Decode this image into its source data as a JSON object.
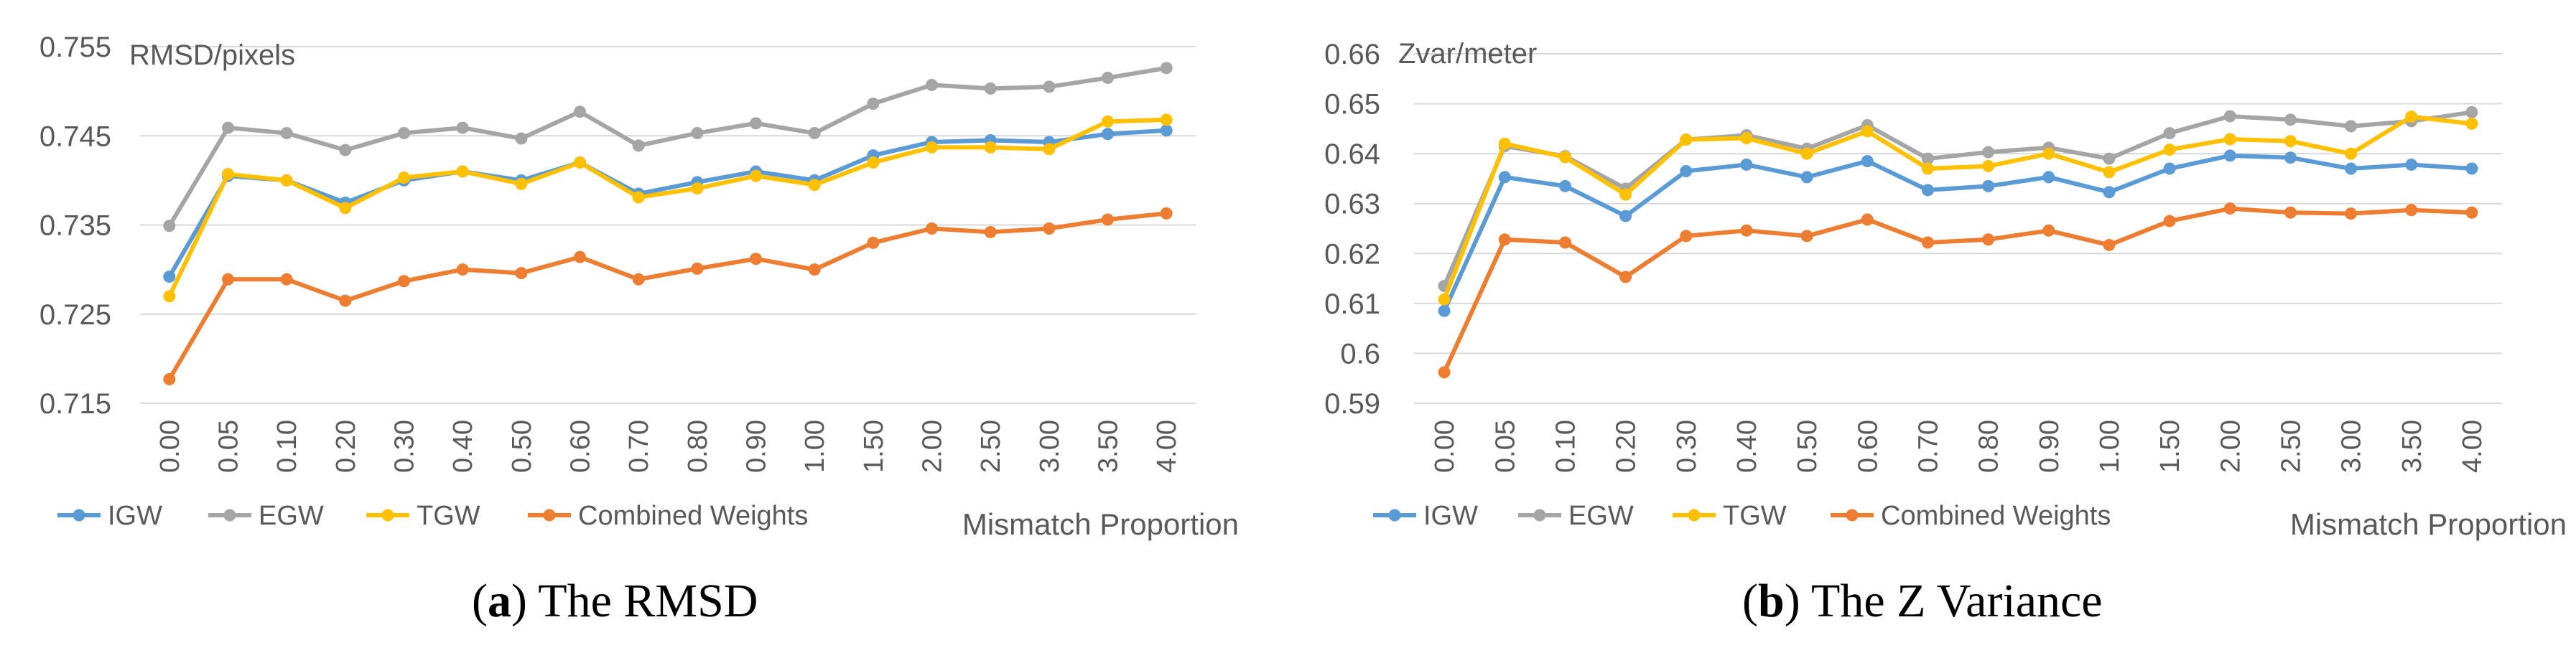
{
  "colors": {
    "IGW": "#5b9bd5",
    "EGW": "#a5a5a5",
    "TGW": "#ffc000",
    "Combined Weights": "#ed7d31",
    "grid": "#d9d9d9",
    "text": "#595959"
  },
  "legend": [
    "IGW",
    "EGW",
    "TGW",
    "Combined Weights"
  ],
  "chart_data": [
    {
      "type": "line",
      "caption_letter": "a",
      "caption_text": "The RMSD",
      "ylabel": "RMSD/pixels",
      "xlabel": "Mismatch Proportion",
      "ylim": [
        0.715,
        0.755
      ],
      "yticks": [
        "0.755",
        "0.745",
        "0.735",
        "0.725",
        "0.715"
      ],
      "categories": [
        "0.00",
        "0.05",
        "0.10",
        "0.20",
        "0.30",
        "0.40",
        "0.50",
        "0.60",
        "0.70",
        "0.80",
        "0.90",
        "1.00",
        "1.50",
        "2.00",
        "2.50",
        "3.00",
        "3.50",
        "4.00"
      ],
      "grid": "horizontal",
      "legend_position": "bottom",
      "series": [
        {
          "name": "IGW",
          "values": [
            0.7292,
            0.7405,
            0.74,
            0.7375,
            0.74,
            0.741,
            0.74,
            0.742,
            0.7385,
            0.7398,
            0.741,
            0.74,
            0.7428,
            0.7443,
            0.7445,
            0.7443,
            0.7452,
            0.7456
          ]
        },
        {
          "name": "EGW",
          "values": [
            0.7349,
            0.7459,
            0.7453,
            0.7434,
            0.7453,
            0.7459,
            0.7447,
            0.7477,
            0.7439,
            0.7453,
            0.7464,
            0.7453,
            0.7486,
            0.7507,
            0.7503,
            0.7505,
            0.7515,
            0.7526
          ]
        },
        {
          "name": "TGW",
          "values": [
            0.727,
            0.7407,
            0.74,
            0.7369,
            0.7403,
            0.741,
            0.7396,
            0.742,
            0.7381,
            0.7391,
            0.7405,
            0.7395,
            0.742,
            0.7437,
            0.7437,
            0.7435,
            0.7466,
            0.7468
          ]
        },
        {
          "name": "Combined Weights",
          "values": [
            0.7177,
            0.7289,
            0.7289,
            0.7265,
            0.7287,
            0.73,
            0.7296,
            0.7314,
            0.7289,
            0.7301,
            0.7312,
            0.73,
            0.733,
            0.7346,
            0.7342,
            0.7346,
            0.7356,
            0.7363
          ]
        }
      ]
    },
    {
      "type": "line",
      "caption_letter": "b",
      "caption_text": "The Z Variance",
      "ylabel": "Zvar/meter",
      "xlabel": "Mismatch Proportion",
      "ylim": [
        0.59,
        0.66
      ],
      "yticks": [
        "0.66",
        "0.65",
        "0.64",
        "0.63",
        "0.62",
        "0.61",
        "0.6",
        "0.59"
      ],
      "categories": [
        "0.00",
        "0.05",
        "0.10",
        "0.20",
        "0.30",
        "0.40",
        "0.50",
        "0.60",
        "0.70",
        "0.80",
        "0.90",
        "1.00",
        "1.50",
        "2.00",
        "2.50",
        "3.00",
        "3.50",
        "4.00"
      ],
      "grid": "horizontal",
      "legend_position": "bottom",
      "series": [
        {
          "name": "IGW",
          "values": [
            0.6085,
            0.6353,
            0.6335,
            0.6275,
            0.6365,
            0.6378,
            0.6353,
            0.6385,
            0.6327,
            0.6335,
            0.6353,
            0.6323,
            0.637,
            0.6396,
            0.6392,
            0.637,
            0.6378,
            0.637
          ]
        },
        {
          "name": "EGW",
          "values": [
            0.6135,
            0.6415,
            0.6395,
            0.633,
            0.6428,
            0.6437,
            0.641,
            0.6457,
            0.639,
            0.6403,
            0.6412,
            0.639,
            0.6441,
            0.6475,
            0.6468,
            0.6455,
            0.6465,
            0.6483
          ]
        },
        {
          "name": "TGW",
          "values": [
            0.6108,
            0.642,
            0.6393,
            0.6318,
            0.6428,
            0.6431,
            0.64,
            0.6445,
            0.637,
            0.6375,
            0.64,
            0.6363,
            0.6408,
            0.6429,
            0.6425,
            0.64,
            0.6474,
            0.646
          ]
        },
        {
          "name": "Combined Weights",
          "values": [
            0.5962,
            0.6228,
            0.6222,
            0.6153,
            0.6235,
            0.6246,
            0.6235,
            0.6268,
            0.6222,
            0.6228,
            0.6246,
            0.6217,
            0.6265,
            0.629,
            0.6282,
            0.628,
            0.6287,
            0.6282
          ]
        }
      ]
    }
  ]
}
